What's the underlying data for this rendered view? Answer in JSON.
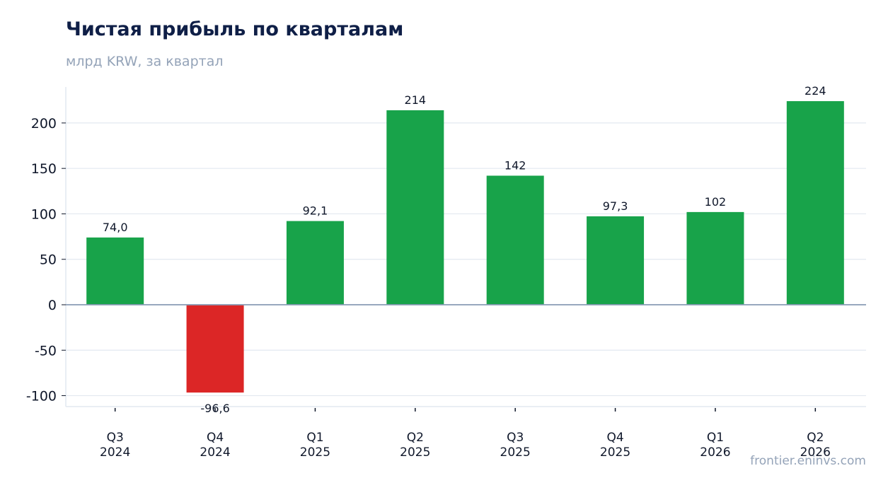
{
  "header": {
    "title": "Чистая прибыль по кварталам",
    "subtitle": "млрд KRW, за квартал"
  },
  "footer": {
    "watermark": "frontier.eninvs.com"
  },
  "colors": {
    "positive": "#18a34a",
    "negative": "#dc2626",
    "zero_line": "#8a9bb5",
    "grid": "#e2e8f0",
    "axis_text": "#0f172a",
    "value_text": "#0f172a"
  },
  "chart_data": {
    "type": "bar",
    "title": "Чистая прибыль по кварталам",
    "subtitle": "млрд KRW, за квартал",
    "categories": [
      [
        "Q3",
        "2024"
      ],
      [
        "Q4",
        "2024"
      ],
      [
        "Q1",
        "2025"
      ],
      [
        "Q2",
        "2025"
      ],
      [
        "Q3",
        "2025"
      ],
      [
        "Q4",
        "2025"
      ],
      [
        "Q1",
        "2026"
      ],
      [
        "Q2",
        "2026"
      ]
    ],
    "values": [
      74.0,
      -96.6,
      92.1,
      214,
      142,
      97.3,
      102,
      224
    ],
    "value_labels": [
      "74,0",
      "-96,6",
      "92,1",
      "214",
      "142",
      "97,3",
      "102",
      "224"
    ],
    "yticks": [
      -100,
      -50,
      0,
      50,
      100,
      150,
      200
    ],
    "ytick_labels": [
      "-100",
      "-50",
      "0",
      "50",
      "100",
      "150",
      "200"
    ],
    "ylim": [
      -112,
      240
    ],
    "grid": true,
    "legend": false
  }
}
